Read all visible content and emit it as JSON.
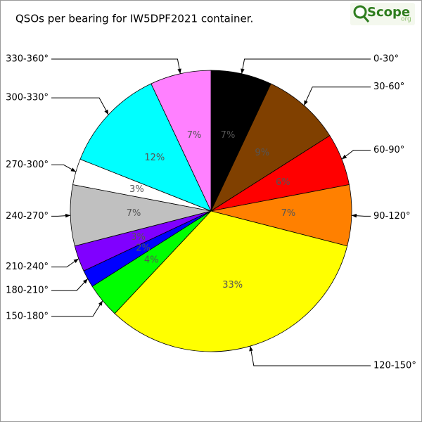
{
  "chart_data": {
    "type": "pie",
    "title": "QSOs per bearing for IW5DPF2021 container.",
    "categories": [
      "0-30°",
      "30-60°",
      "60-90°",
      "90-120°",
      "120-150°",
      "150-180°",
      "180-210°",
      "210-240°",
      "240-270°",
      "270-300°",
      "300-330°",
      "330-360°"
    ],
    "values": [
      7,
      9,
      6,
      7,
      33,
      4,
      2,
      3,
      7,
      3,
      12,
      7
    ],
    "value_labels": [
      "7%",
      "9%",
      "6%",
      "7%",
      "33%",
      "4%",
      "2%",
      "3%",
      "7%",
      "3%",
      "12%",
      "7%"
    ],
    "colors": [
      "#000000",
      "#804000",
      "#ff0000",
      "#ff8000",
      "#ffff00",
      "#00ff00",
      "#0000ff",
      "#8000ff",
      "#c0c0c0",
      "#ffffff",
      "#00ffff",
      "#ff80ff"
    ]
  },
  "logo": {
    "name": "Scope",
    "suffix": "org"
  }
}
